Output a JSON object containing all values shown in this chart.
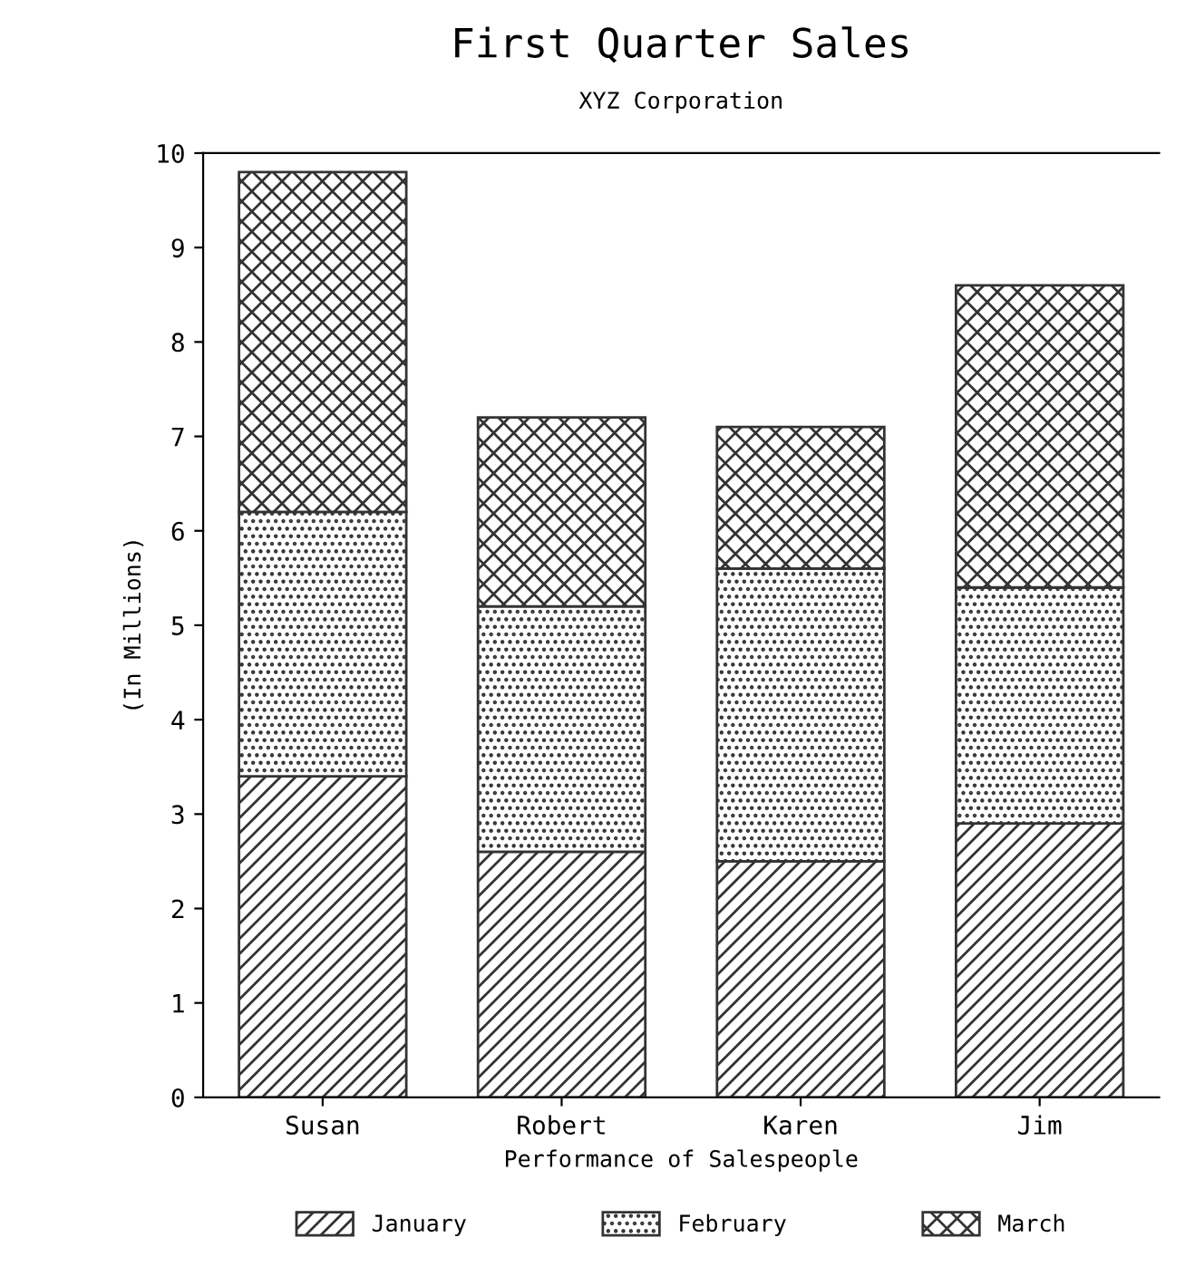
{
  "chart_data": {
    "type": "bar",
    "title": "First Quarter Sales",
    "subtitle": "XYZ Corporation",
    "xlabel": "Performance of Salespeople",
    "ylabel": "(In Millions)",
    "categories": [
      "Susan",
      "Robert",
      "Karen",
      "Jim"
    ],
    "stacked": true,
    "series": [
      {
        "name": "January",
        "color": "#333333",
        "values": [
          3.4,
          2.6,
          2.5,
          2.9
        ]
      },
      {
        "name": "February",
        "color": "#333333",
        "values": [
          2.8,
          2.6,
          3.1,
          2.5
        ]
      },
      {
        "name": "March",
        "color": "#333333",
        "values": [
          3.6,
          2.0,
          1.5,
          3.2
        ]
      }
    ],
    "ylim": [
      0,
      10
    ],
    "yticks": [
      0,
      1,
      2,
      3,
      4,
      5,
      6,
      7,
      8,
      9,
      10
    ],
    "grid": false,
    "legend": "bottom"
  }
}
